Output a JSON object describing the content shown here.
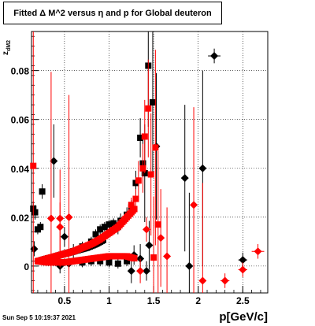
{
  "chart_data": {
    "type": "scatter",
    "title": "Fitted Δ M^2 versus η and p for Global deuteron",
    "xlabel": "p[GeV/c]",
    "ylabel": "z_{dM2}",
    "xlim": [
      0.13,
      2.78
    ],
    "ylim": [
      -0.011,
      0.096
    ],
    "xticks": [
      0.5,
      1,
      1.5,
      2,
      2.5
    ],
    "xtick_labels": [
      "0.5",
      "1",
      "1.5",
      "2",
      "2.5"
    ],
    "yticks": [
      0,
      0.02,
      0.04,
      0.06,
      0.08
    ],
    "ytick_labels": [
      "0",
      "0.02",
      "0.04",
      "0.06",
      "0.08"
    ],
    "grid": true,
    "timestamp": "Sun Sep  5 10:19:37 2021",
    "colors": {
      "series_black": "#000000",
      "series_red": "#ff0000"
    },
    "series": [
      {
        "color": "#000000",
        "points": [
          {
            "x": 0.15,
            "y": 0.0235,
            "ey": 0.003,
            "m": "s"
          },
          {
            "x": 0.17,
            "y": 0.022,
            "ey": 0.003,
            "m": "s"
          },
          {
            "x": 0.2,
            "y": 0.015,
            "ey": 0.002,
            "m": "s"
          },
          {
            "x": 0.23,
            "y": 0.016,
            "ey": 0.002,
            "m": "s"
          },
          {
            "x": 0.25,
            "y": 0.0305,
            "ey": 0.003,
            "m": "s"
          },
          {
            "x": 0.16,
            "y": 0.007,
            "ey": 0.003,
            "m": "d"
          },
          {
            "x": 0.38,
            "y": 0.043,
            "ey": 0.015,
            "m": "d"
          },
          {
            "x": 0.45,
            "y": 0.0,
            "ey": 0.003,
            "m": "d"
          },
          {
            "x": 0.55,
            "y": 0.001,
            "ey": 0.002,
            "m": "d"
          },
          {
            "x": 0.5,
            "y": 0.012,
            "ey": 0.004,
            "m": "d"
          },
          {
            "x": 0.6,
            "y": 0.006,
            "ey": 0.003,
            "m": "s"
          },
          {
            "x": 0.7,
            "y": 0.008,
            "ey": 0.002,
            "m": "s"
          },
          {
            "x": 0.8,
            "y": 0.01,
            "ey": 0.002,
            "m": "s"
          },
          {
            "x": 0.85,
            "y": 0.013,
            "ey": 0.002,
            "m": "s"
          },
          {
            "x": 0.9,
            "y": 0.015,
            "ey": 0.002,
            "m": "s"
          },
          {
            "x": 0.95,
            "y": 0.016,
            "ey": 0.002,
            "m": "s"
          },
          {
            "x": 1.0,
            "y": 0.017,
            "ey": 0.002,
            "m": "s"
          },
          {
            "x": 1.05,
            "y": 0.0175,
            "ey": 0.002,
            "m": "s"
          },
          {
            "x": 1.1,
            "y": 0.016,
            "ey": 0.003,
            "m": "s"
          },
          {
            "x": 1.13,
            "y": 0.0185,
            "ey": 0.003,
            "m": "s"
          },
          {
            "x": 1.2,
            "y": 0.021,
            "ey": 0.003,
            "m": "s"
          },
          {
            "x": 1.25,
            "y": 0.024,
            "ey": 0.003,
            "m": "s"
          },
          {
            "x": 1.3,
            "y": 0.034,
            "ey": 0.005,
            "m": "s"
          },
          {
            "x": 1.35,
            "y": 0.0525,
            "ey": 0.008,
            "m": "s"
          },
          {
            "x": 1.38,
            "y": 0.042,
            "ey": 0.01,
            "m": "s"
          },
          {
            "x": 1.4,
            "y": 0.038,
            "ey": 0.02,
            "m": "s"
          },
          {
            "x": 1.44,
            "y": 0.082,
            "ey": 0.025,
            "m": "s"
          },
          {
            "x": 1.49,
            "y": 0.067,
            "ey": 0.03,
            "m": "s"
          },
          {
            "x": 1.53,
            "y": 0.049,
            "ey": 0.03,
            "m": "d"
          },
          {
            "x": 1.45,
            "y": 0.0085,
            "ey": 0.01,
            "m": "d"
          },
          {
            "x": 1.35,
            "y": 0.003,
            "ey": 0.006,
            "m": "d"
          },
          {
            "x": 1.28,
            "y": 0.0045,
            "ey": 0.004,
            "m": "d"
          },
          {
            "x": 1.42,
            "y": -0.002,
            "ey": 0.004,
            "m": "d"
          },
          {
            "x": 1.25,
            "y": -0.002,
            "ey": 0.005,
            "m": "d"
          },
          {
            "x": 0.7,
            "y": 0.0015,
            "ey": 0.002,
            "m": "s"
          },
          {
            "x": 0.8,
            "y": 0.002,
            "ey": 0.002,
            "m": "s"
          },
          {
            "x": 0.9,
            "y": 0.002,
            "ey": 0.002,
            "m": "s"
          },
          {
            "x": 1.0,
            "y": 0.0015,
            "ey": 0.002,
            "m": "s"
          },
          {
            "x": 1.1,
            "y": 0.001,
            "ey": 0.002,
            "m": "s"
          },
          {
            "x": 1.2,
            "y": 0.002,
            "ey": 0.002,
            "m": "s"
          },
          {
            "x": 1.85,
            "y": 0.036,
            "ey": 0.03,
            "m": "d"
          },
          {
            "x": 1.9,
            "y": 0.0,
            "ey": 0.03,
            "m": "d"
          },
          {
            "x": 2.05,
            "y": 0.04,
            "ey": 0.04,
            "m": "d"
          },
          {
            "x": 2.18,
            "y": 0.086,
            "ey": 0.003,
            "ex": 0.07,
            "m": "d"
          },
          {
            "x": 2.5,
            "y": 0.0025,
            "ey": 0.003,
            "ex": 0.05,
            "m": "d"
          }
        ],
        "band": [
          {
            "x": 0.25,
            "y": 0.0025
          },
          {
            "x": 0.35,
            "y": 0.0035
          },
          {
            "x": 0.45,
            "y": 0.0045
          },
          {
            "x": 0.55,
            "y": 0.0055
          },
          {
            "x": 0.65,
            "y": 0.0065
          },
          {
            "x": 0.75,
            "y": 0.0075
          },
          {
            "x": 0.85,
            "y": 0.009
          },
          {
            "x": 0.95,
            "y": 0.011
          }
        ]
      },
      {
        "color": "#ff0000",
        "points": [
          {
            "x": 0.15,
            "y": 0.041,
            "ey": 0.06,
            "m": "s"
          },
          {
            "x": 0.35,
            "y": 0.0195,
            "ey": 0.06,
            "m": "d"
          },
          {
            "x": 0.45,
            "y": 0.0195,
            "ey": 0.02,
            "m": "d"
          },
          {
            "x": 0.55,
            "y": 0.02,
            "ey": 0.05,
            "m": "d"
          },
          {
            "x": 0.45,
            "y": 0.016,
            "ey": 0.01,
            "m": "d"
          },
          {
            "x": 1.25,
            "y": 0.025,
            "ey": 0.003,
            "m": "s"
          },
          {
            "x": 1.3,
            "y": 0.0275,
            "ey": 0.004,
            "m": "s"
          },
          {
            "x": 1.33,
            "y": 0.035,
            "ey": 0.008,
            "m": "s"
          },
          {
            "x": 1.38,
            "y": 0.04,
            "ey": 0.01,
            "m": "s"
          },
          {
            "x": 1.4,
            "y": 0.053,
            "ey": 0.015,
            "m": "s"
          },
          {
            "x": 1.44,
            "y": 0.0645,
            "ey": 0.02,
            "m": "s"
          },
          {
            "x": 1.47,
            "y": 0.0375,
            "ey": 0.025,
            "m": "s"
          },
          {
            "x": 1.5,
            "y": 0.0035,
            "ey": 0.025,
            "m": "s"
          },
          {
            "x": 1.52,
            "y": 0.0485,
            "ey": 0.04,
            "m": "s"
          },
          {
            "x": 1.55,
            "y": 0.017,
            "ey": 0.03,
            "m": "s"
          },
          {
            "x": 1.42,
            "y": 0.015,
            "ey": 0.005,
            "m": "d"
          },
          {
            "x": 1.58,
            "y": 0.0115,
            "ey": 0.02,
            "m": "d"
          },
          {
            "x": 1.65,
            "y": 0.004,
            "ey": 0.02,
            "m": "d"
          },
          {
            "x": 1.35,
            "y": -0.002,
            "ey": 0.005,
            "m": "d"
          },
          {
            "x": 1.95,
            "y": 0.025,
            "ey": 0.04,
            "m": "d"
          },
          {
            "x": 2.05,
            "y": -0.006,
            "ey": 0.04,
            "m": "d"
          },
          {
            "x": 2.3,
            "y": -0.006,
            "ey": 0.003,
            "ex": 0.05,
            "m": "d"
          },
          {
            "x": 2.5,
            "y": -0.0015,
            "ey": 0.003,
            "ex": 0.05,
            "m": "d"
          },
          {
            "x": 2.67,
            "y": 0.006,
            "ey": 0.003,
            "ex": 0.07,
            "m": "d"
          }
        ],
        "band": [
          {
            "x": 0.2,
            "y": 0.002
          },
          {
            "x": 0.3,
            "y": 0.003
          },
          {
            "x": 0.4,
            "y": 0.004
          },
          {
            "x": 0.5,
            "y": 0.005
          },
          {
            "x": 0.6,
            "y": 0.006
          },
          {
            "x": 0.7,
            "y": 0.0075
          },
          {
            "x": 0.8,
            "y": 0.009
          },
          {
            "x": 0.9,
            "y": 0.011
          },
          {
            "x": 1.0,
            "y": 0.0135
          },
          {
            "x": 1.1,
            "y": 0.016
          },
          {
            "x": 1.2,
            "y": 0.02
          },
          {
            "x": 1.3,
            "y": 0.024
          }
        ],
        "band2": [
          {
            "x": 0.2,
            "y": 0.002
          },
          {
            "x": 0.3,
            "y": 0.0015
          },
          {
            "x": 0.4,
            "y": 0.0015
          },
          {
            "x": 0.5,
            "y": 0.0015
          },
          {
            "x": 0.6,
            "y": 0.002
          },
          {
            "x": 0.7,
            "y": 0.0025
          },
          {
            "x": 0.8,
            "y": 0.003
          },
          {
            "x": 0.9,
            "y": 0.0035
          },
          {
            "x": 1.0,
            "y": 0.004
          },
          {
            "x": 1.1,
            "y": 0.004
          },
          {
            "x": 1.2,
            "y": 0.004
          },
          {
            "x": 1.3,
            "y": 0.003
          }
        ]
      }
    ]
  }
}
